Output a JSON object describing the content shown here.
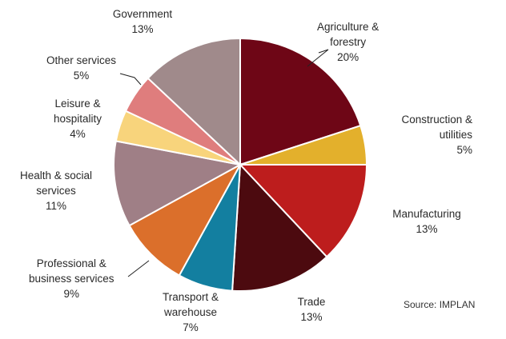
{
  "chart_data": {
    "type": "pie",
    "title": "",
    "slices": [
      {
        "lines": [
          "Agriculture &",
          "forestry"
        ],
        "pct": "20%",
        "value": 20,
        "color": "#6e0616"
      },
      {
        "lines": [
          "Construction &",
          "utilities"
        ],
        "pct": "5%",
        "value": 5,
        "color": "#e3b02c"
      },
      {
        "lines": [
          "Manufacturing"
        ],
        "pct": "13%",
        "value": 13,
        "color": "#bd1d1d"
      },
      {
        "lines": [
          "Trade"
        ],
        "pct": "13%",
        "value": 13,
        "color": "#4c0a0f"
      },
      {
        "lines": [
          "Transport &",
          "warehouse"
        ],
        "pct": "7%",
        "value": 7,
        "color": "#137fa0"
      },
      {
        "lines": [
          "Professional &",
          "business services"
        ],
        "pct": "9%",
        "value": 9,
        "color": "#db6f2b"
      },
      {
        "lines": [
          "Health & social",
          "services"
        ],
        "pct": "11%",
        "value": 11,
        "color": "#9f7f86"
      },
      {
        "lines": [
          "Leisure &",
          "hospitality"
        ],
        "pct": "4%",
        "value": 4,
        "color": "#f8d47c"
      },
      {
        "lines": [
          "Other services"
        ],
        "pct": "5%",
        "value": 5,
        "color": "#df7d7d"
      },
      {
        "lines": [
          "Government"
        ],
        "pct": "13%",
        "value": 13,
        "color": "#a08a8b"
      }
    ],
    "source": "Source: IMPLAN"
  }
}
